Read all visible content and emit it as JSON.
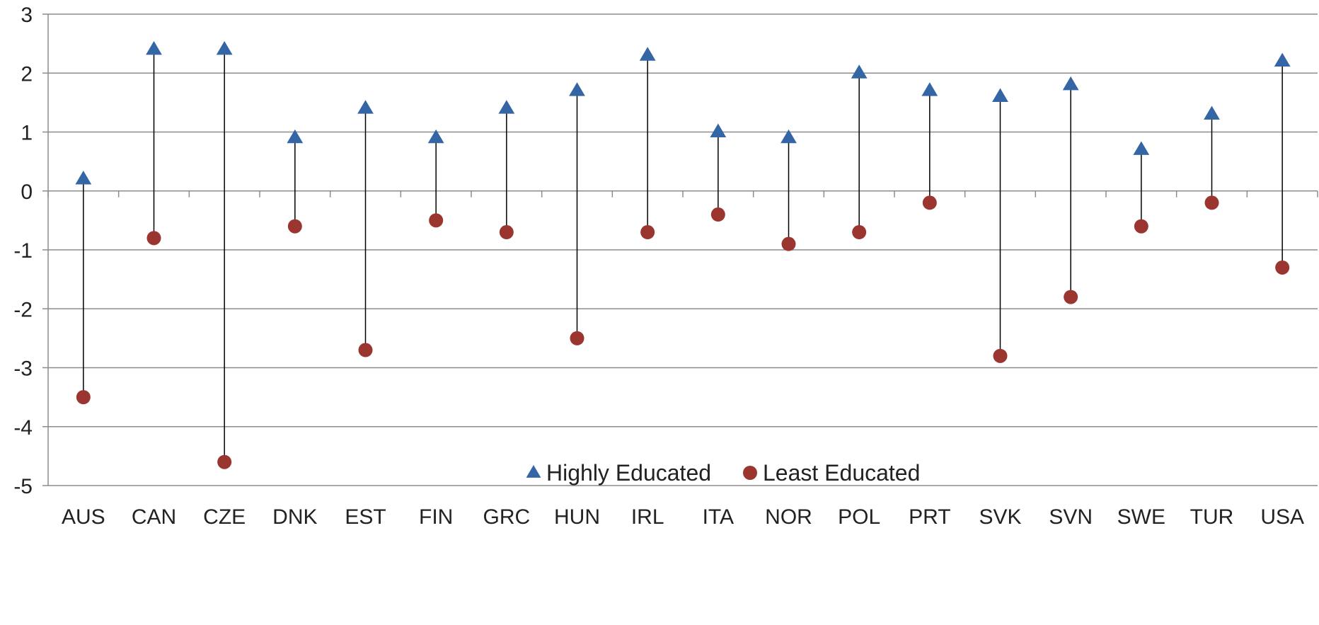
{
  "chart_data": {
    "type": "scatter",
    "title": "",
    "xlabel": "",
    "ylabel": "",
    "ylim": [
      -5,
      3
    ],
    "yticks": [
      3,
      2,
      1,
      0,
      -1,
      -2,
      -3,
      -4,
      -5
    ],
    "grid": true,
    "legend_position": "bottom-right (inside plot)",
    "categories": [
      "AUS",
      "CAN",
      "CZE",
      "DNK",
      "EST",
      "FIN",
      "GRC",
      "HUN",
      "IRL",
      "ITA",
      "NOR",
      "POL",
      "PRT",
      "SVK",
      "SVN",
      "SWE",
      "TUR",
      "USA"
    ],
    "series": [
      {
        "name": "Highly Educated",
        "marker": "triangle",
        "color": "#3466A5",
        "values": [
          0.2,
          2.4,
          2.4,
          0.9,
          1.4,
          0.9,
          1.4,
          1.7,
          2.3,
          1.0,
          0.9,
          2.0,
          1.7,
          1.6,
          1.8,
          0.7,
          1.3,
          2.2
        ]
      },
      {
        "name": "Least Educated",
        "marker": "circle",
        "color": "#9B3530",
        "values": [
          -3.5,
          -0.8,
          -4.6,
          -0.6,
          -2.7,
          -0.5,
          -0.7,
          -2.5,
          -0.7,
          -0.4,
          -0.9,
          -0.7,
          -0.2,
          -2.8,
          -1.8,
          -0.6,
          -0.2,
          -1.3
        ]
      }
    ],
    "connector_color": "#000000",
    "gridline_color": "#8c8c8c"
  }
}
